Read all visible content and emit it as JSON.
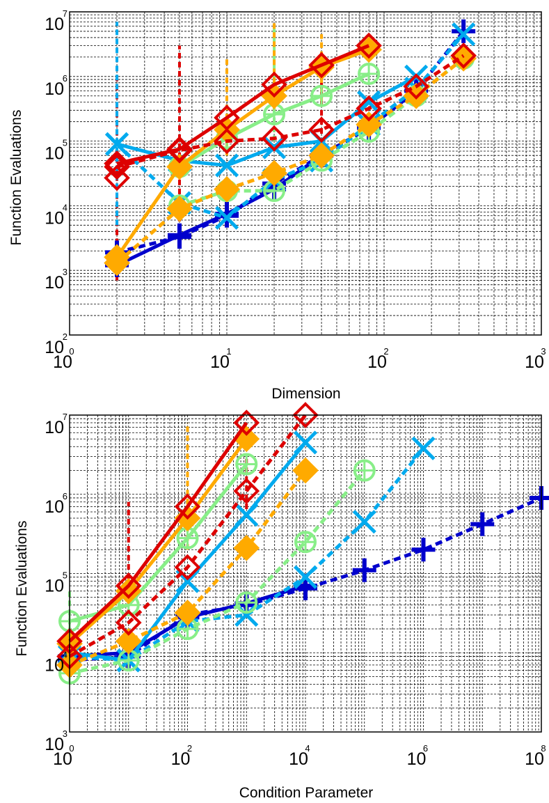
{
  "chart_data": [
    {
      "type": "line",
      "xlabel": "Dimension",
      "ylabel": "Function Evaluations",
      "xscale": "log",
      "yscale": "log",
      "xlim": [
        1,
        1000
      ],
      "ylim": [
        100,
        10000000
      ],
      "x_tick_labels": [
        "10",
        "10",
        "10",
        "10"
      ],
      "x_tick_exponents": [
        "0",
        "1",
        "2",
        "3"
      ],
      "y_tick_labels": [
        "10",
        "10",
        "10",
        "10",
        "10",
        "10"
      ],
      "y_tick_exponents": [
        "2",
        "3",
        "4",
        "5",
        "6",
        "7"
      ],
      "grid": true,
      "series": [
        {
          "color": "#0000cc",
          "marker": "plus",
          "dash": "solid",
          "x": [
            2,
            5,
            10,
            20,
            40
          ],
          "y": [
            1200,
            3500,
            7500,
            18000,
            60000
          ]
        },
        {
          "color": "#0000cc",
          "marker": "plus",
          "dash": "dashed",
          "x": [
            2,
            5,
            10,
            20,
            40,
            80,
            160,
            320
          ],
          "y": [
            1900,
            3300,
            7000,
            22000,
            60000,
            160000,
            600000,
            5000000
          ]
        },
        {
          "color": "#00aaee",
          "marker": "x",
          "dash": "solid",
          "x": [
            2,
            5,
            10,
            20,
            40,
            80,
            160
          ],
          "y": [
            90000,
            50000,
            42000,
            80000,
            100000,
            400000,
            1000000
          ]
        },
        {
          "color": "#00aaee",
          "marker": "x",
          "dash": "dashed",
          "x": [
            2,
            5,
            10,
            20,
            40,
            80,
            160,
            320
          ],
          "y": [
            90000,
            11000,
            6500,
            25000,
            50000,
            180000,
            650000,
            4500000
          ]
        },
        {
          "color": "#88ee88",
          "marker": "circle-plus",
          "dash": "solid",
          "x": [
            5,
            10,
            20,
            40,
            80
          ],
          "y": [
            40000,
            110000,
            260000,
            500000,
            1100000
          ]
        },
        {
          "color": "#88ee88",
          "marker": "circle-plus",
          "dash": "dashed",
          "x": [
            5,
            10,
            20,
            40,
            80,
            160,
            320
          ],
          "y": [
            10000,
            17000,
            17000,
            50000,
            140000,
            500000,
            1900000
          ]
        },
        {
          "color": "#ffaa00",
          "marker": "diamond",
          "dash": "solid",
          "x": [
            2,
            5,
            10,
            20,
            40,
            80
          ],
          "y": [
            1600,
            40000,
            150000,
            500000,
            1400000,
            2600000
          ]
        },
        {
          "color": "#ffaa00",
          "marker": "diamond",
          "dash": "dashed",
          "x": [
            2,
            5,
            10,
            20,
            40,
            80,
            160,
            320
          ],
          "y": [
            1300,
            9000,
            18000,
            32000,
            60000,
            180000,
            500000,
            1900000
          ]
        },
        {
          "color": "#dd0000",
          "marker": "diamond",
          "dash": "solid",
          "x": [
            2,
            5,
            10,
            20,
            40,
            80
          ],
          "y": [
            45000,
            75000,
            230000,
            750000,
            1500000,
            3000000
          ]
        },
        {
          "color": "#dd0000",
          "marker": "diamond",
          "dash": "dashed",
          "x": [
            2,
            2,
            5,
            10,
            20,
            40,
            80,
            160,
            320
          ],
          "y": [
            27000,
            40000,
            72000,
            100000,
            110000,
            150000,
            320000,
            700000,
            2100000
          ]
        }
      ],
      "error_bars": [
        {
          "color": "#dd0000",
          "x": 2,
          "y_low": 700,
          "y_high": 1000000
        },
        {
          "color": "#00aaee",
          "x": 2,
          "y_low": 5000,
          "y_high": 7000000
        },
        {
          "color": "#dd0000",
          "x": 5,
          "y_low": 3000,
          "y_high": 3000000
        },
        {
          "color": "#ffaa00",
          "x": 10,
          "y_low": 60000,
          "y_high": 2000000
        },
        {
          "color": "#88ee88",
          "x": 20,
          "y_low": 100000,
          "y_high": 6000000
        },
        {
          "color": "#ffaa00",
          "x": 20,
          "y_low": 300000,
          "y_high": 7000000
        },
        {
          "color": "#ffaa00",
          "x": 40,
          "y_low": 400000,
          "y_high": 4500000
        },
        {
          "color": "#dd0000",
          "x": 40,
          "y_low": 130000,
          "y_high": 1800000
        }
      ]
    },
    {
      "type": "line",
      "xlabel": "Condition Parameter",
      "ylabel": "Function Evaluations",
      "xscale": "log",
      "yscale": "log",
      "xlim": [
        1,
        100000000
      ],
      "ylim": [
        1000,
        10000000
      ],
      "x_tick_labels": [
        "10",
        "10",
        "10",
        "10",
        "10"
      ],
      "x_tick_exponents": [
        "0",
        "2",
        "4",
        "6",
        "8"
      ],
      "y_tick_labels": [
        "10",
        "10",
        "10",
        "10",
        "10"
      ],
      "y_tick_exponents": [
        "3",
        "4",
        "5",
        "6",
        "7"
      ],
      "grid": true,
      "series": [
        {
          "color": "#0000cc",
          "marker": "plus",
          "dash": "solid",
          "x": [
            1,
            10,
            100,
            1000,
            10000
          ],
          "y": [
            9000,
            10000,
            28000,
            42000,
            70000
          ]
        },
        {
          "color": "#0000cc",
          "marker": "plus",
          "dash": "dashed",
          "x": [
            1,
            10,
            100,
            1000,
            10000,
            100000,
            1000000,
            10000000,
            100000000
          ],
          "y": [
            8000,
            9000,
            30000,
            40000,
            65000,
            110000,
            200000,
            420000,
            900000
          ]
        },
        {
          "color": "#00aaee",
          "marker": "x",
          "dash": "solid",
          "x": [
            1,
            10,
            100,
            1000,
            10000
          ],
          "y": [
            10000,
            8000,
            80000,
            550000,
            4500000
          ]
        },
        {
          "color": "#00aaee",
          "marker": "x",
          "dash": "dashed",
          "x": [
            1,
            10,
            100,
            1000,
            10000,
            100000,
            1000000
          ],
          "y": [
            9000,
            8000,
            25000,
            30000,
            90000,
            450000,
            3800000
          ]
        },
        {
          "color": "#88ee88",
          "marker": "circle-plus",
          "dash": "solid",
          "x": [
            1,
            10,
            100,
            1000
          ],
          "y": [
            25000,
            40000,
            280000,
            2400000
          ]
        },
        {
          "color": "#88ee88",
          "marker": "circle-plus",
          "dash": "dashed",
          "x": [
            1,
            10,
            100,
            1000,
            10000,
            100000
          ],
          "y": [
            5500,
            8000,
            20000,
            43000,
            250000,
            2000000
          ]
        },
        {
          "color": "#ffaa00",
          "marker": "diamond",
          "dash": "solid",
          "x": [
            1,
            10,
            100,
            1000
          ],
          "y": [
            13000,
            60000,
            500000,
            5000000
          ]
        },
        {
          "color": "#ffaa00",
          "marker": "diamond",
          "dash": "dashed",
          "x": [
            1,
            10,
            100,
            1000,
            10000
          ],
          "y": [
            7000,
            14000,
            32000,
            210000,
            2000000
          ]
        },
        {
          "color": "#dd0000",
          "marker": "diamond",
          "dash": "solid",
          "x": [
            1,
            10,
            100,
            1000
          ],
          "y": [
            14000,
            70000,
            700000,
            8000000
          ]
        },
        {
          "color": "#dd0000",
          "marker": "diamond",
          "dash": "dashed",
          "x": [
            1,
            10,
            100,
            1000,
            10000
          ],
          "y": [
            9000,
            24000,
            120000,
            1100000,
            10000000
          ]
        }
      ],
      "error_bars": [
        {
          "color": "#dd0000",
          "x": 10,
          "y_low": 30000,
          "y_high": 800000
        },
        {
          "color": "#ffaa00",
          "x": 100,
          "y_low": 200000,
          "y_high": 8000000
        },
        {
          "color": "#dd0000",
          "x": 1000,
          "y_low": 500000,
          "y_high": 2800000
        },
        {
          "color": "#88ee88",
          "x": 1,
          "y_low": 8000,
          "y_high": 60000
        }
      ]
    }
  ]
}
